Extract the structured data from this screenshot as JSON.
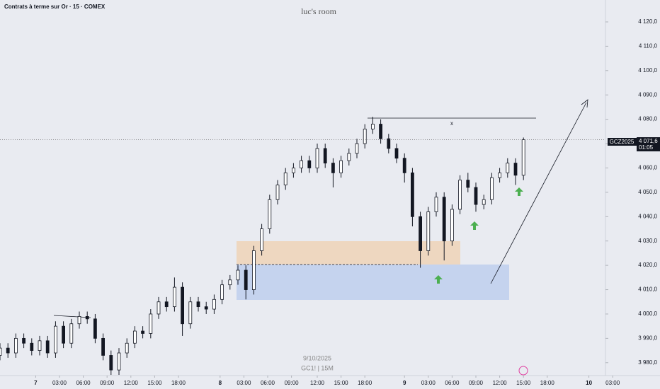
{
  "chart_data": {
    "type": "candlestick",
    "title": "Contrats à terme sur Or · 15 · COMEX",
    "watermark": "luc's room",
    "symbol": "GCZ2025",
    "last_price_label": "4 071,6",
    "countdown": "01:05",
    "date_label": "9/10/2025",
    "interval_label": "GC1! | 15M",
    "annotation": "x",
    "x": [
      0,
      4,
      8,
      12,
      16,
      20,
      24,
      28,
      32,
      36,
      40,
      44,
      48,
      52,
      56,
      60,
      64,
      68,
      72,
      76,
      80,
      84,
      88,
      92,
      96,
      100,
      104,
      108,
      112,
      116,
      120,
      124,
      128,
      132,
      136,
      140,
      144,
      148,
      152,
      156,
      160,
      164,
      168,
      172,
      176,
      180,
      184,
      188,
      192,
      196,
      200,
      204,
      208,
      212,
      216,
      220,
      224,
      228,
      232,
      236,
      240,
      244,
      248,
      252,
      256,
      260,
      264
    ],
    "open": [
      3983,
      3986,
      3984,
      3990,
      3988,
      3985,
      3989,
      3984,
      3995,
      3988,
      3996,
      3999,
      3998,
      3990,
      3983,
      3977,
      3984,
      3988,
      3993,
      3992,
      4000,
      4005,
      4003,
      4011,
      3996,
      4005,
      4003,
      4002,
      4006,
      4012,
      4014,
      4018,
      4010,
      4026,
      4035,
      4047,
      4053,
      4058,
      4060,
      4063,
      4060,
      4068,
      4062,
      4058,
      4063,
      4066,
      4070,
      4076,
      4078,
      4072,
      4068,
      4064,
      4058,
      4040,
      4026,
      4042,
      4048,
      4030,
      4043,
      4055,
      4052,
      4045,
      4047,
      4056,
      4058,
      4062,
      4057
    ],
    "high": [
      3988,
      3988,
      3992,
      3992,
      3990,
      3991,
      3991,
      3997,
      3997,
      3998,
      4001,
      4001,
      4000,
      3992,
      3985,
      3986,
      3990,
      3995,
      3995,
      4002,
      4007,
      4007,
      4015,
      4013,
      4007,
      4007,
      4005,
      4008,
      4014,
      4016,
      4020,
      4020,
      4028,
      4037,
      4049,
      4055,
      4060,
      4062,
      4065,
      4065,
      4070,
      4070,
      4064,
      4065,
      4068,
      4072,
      4078,
      4081,
      4080,
      4074,
      4070,
      4066,
      4060,
      4042,
      4044,
      4050,
      4050,
      4045,
      4057,
      4058,
      4054,
      4049,
      4058,
      4060,
      4064,
      4064,
      4072.5
    ],
    "low": [
      3981,
      3982,
      3982,
      3986,
      3983,
      3983,
      3982,
      3982,
      3986,
      3986,
      3994,
      3996,
      3988,
      3981,
      3975,
      3975,
      3982,
      3986,
      3990,
      3990,
      3998,
      4001,
      4001,
      3991,
      3994,
      4001,
      4000,
      4000,
      4004,
      4010,
      4012,
      4006,
      4008,
      4024,
      4033,
      4045,
      4051,
      4056,
      4058,
      4058,
      4058,
      4060,
      4052,
      4056,
      4061,
      4064,
      4068,
      4074,
      4070,
      4066,
      4062,
      4054,
      4036,
      4019,
      4024,
      4040,
      4022,
      4028,
      4041,
      4050,
      4042,
      4043,
      4045,
      4054,
      4056,
      4053,
      4055
    ],
    "close": [
      3986,
      3984,
      3990,
      3988,
      3985,
      3989,
      3984,
      3995,
      3988,
      3996,
      3999,
      3998,
      3990,
      3983,
      3977,
      3984,
      3988,
      3993,
      3992,
      4000,
      4005,
      4003,
      4011,
      3996,
      4005,
      4003,
      4002,
      4006,
      4012,
      4014,
      4018,
      4010,
      4026,
      4035,
      4047,
      4053,
      4058,
      4060,
      4063,
      4060,
      4068,
      4062,
      4058,
      4063,
      4066,
      4070,
      4076,
      4078,
      4072,
      4068,
      4064,
      4058,
      4040,
      4026,
      4042,
      4048,
      4030,
      4043,
      4055,
      4052,
      4045,
      4047,
      4056,
      4058,
      4062,
      4057,
      4071.6
    ],
    "up_color": "#ffffff",
    "down_color": "#131722",
    "xlim": [
      0,
      314
    ],
    "ylim": [
      3975,
      4129
    ],
    "xticks": [
      {
        "value": 18,
        "label": "7"
      },
      {
        "value": 30,
        "label": "03:00"
      },
      {
        "value": 42,
        "label": "06:00"
      },
      {
        "value": 54,
        "label": "09:00"
      },
      {
        "value": 66,
        "label": "12:00"
      },
      {
        "value": 78,
        "label": "15:00"
      },
      {
        "value": 90,
        "label": "18:00"
      },
      {
        "value": 111,
        "label": "8"
      },
      {
        "value": 123,
        "label": "03:00"
      },
      {
        "value": 135,
        "label": "06:00"
      },
      {
        "value": 147,
        "label": "09:00"
      },
      {
        "value": 160,
        "label": "12:00"
      },
      {
        "value": 172,
        "label": "15:00"
      },
      {
        "value": 184,
        "label": "18:00"
      },
      {
        "value": 204,
        "label": "9"
      },
      {
        "value": 216,
        "label": "03:00"
      },
      {
        "value": 228,
        "label": "06:00"
      },
      {
        "value": 240,
        "label": "09:00"
      },
      {
        "value": 252,
        "label": "12:00"
      },
      {
        "value": 264,
        "label": "15:00"
      },
      {
        "value": 276,
        "label": "18:00"
      },
      {
        "value": 297,
        "label": "10"
      },
      {
        "value": 309,
        "label": "03:00"
      }
    ],
    "yticks": [
      {
        "value": 3980,
        "label": "3 980,0"
      },
      {
        "value": 3990,
        "label": "3 990,0"
      },
      {
        "value": 4000,
        "label": "4 000,0"
      },
      {
        "value": 4010,
        "label": "4 010,0"
      },
      {
        "value": 4020,
        "label": "4 020,0"
      },
      {
        "value": 4030,
        "label": "4 030,0"
      },
      {
        "value": 4040,
        "label": "4 040,0"
      },
      {
        "value": 4050,
        "label": "4 050,0"
      },
      {
        "value": 4060,
        "label": "4 060,0"
      },
      {
        "value": 4070,
        "label": "4 070,0"
      },
      {
        "value": 4080,
        "label": "4 080,0"
      },
      {
        "value": 4090,
        "label": "4 090,0"
      },
      {
        "value": 4100,
        "label": "4 100,0"
      },
      {
        "value": 4110,
        "label": "4 110,0"
      },
      {
        "value": 4120,
        "label": "4 120,0"
      }
    ]
  }
}
